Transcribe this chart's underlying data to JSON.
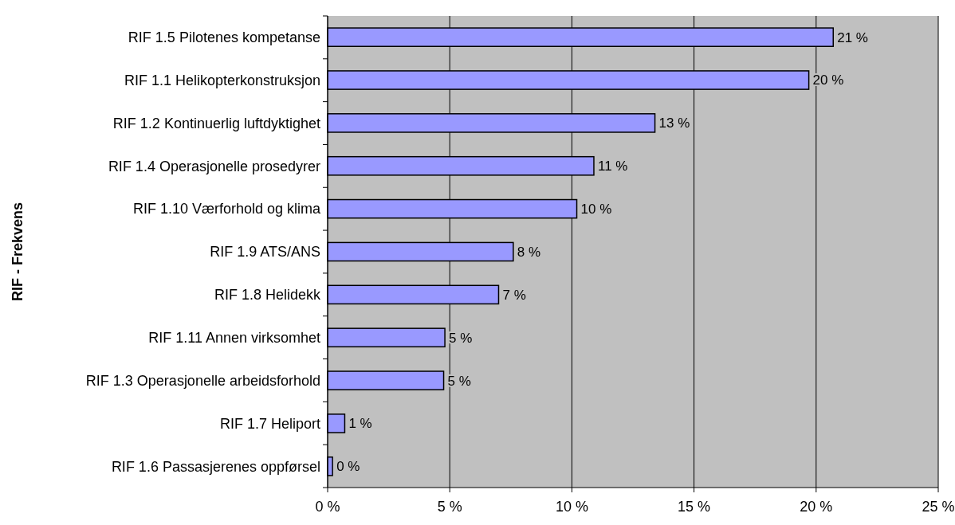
{
  "chart_data": {
    "type": "bar",
    "orientation": "horizontal",
    "ylabel": "RIF - Frekvens",
    "categories": [
      "RIF 1.5 Pilotenes kompetanse",
      "RIF 1.1 Helikopterkonstruksjon",
      "RIF 1.2 Kontinuerlig luftdyktighet",
      "RIF 1.4 Operasjonelle prosedyrer",
      "RIF 1.10 Værforhold og klima",
      "RIF 1.9 ATS/ANS",
      "RIF 1.8 Helidekk",
      "RIF 1.11 Annen virksomhet",
      "RIF 1.3 Operasjonelle arbeidsforhold",
      "RIF 1.7 Heliport",
      "RIF 1.6 Passasjerenes oppførsel"
    ],
    "values": [
      20.7,
      19.7,
      13.4,
      10.9,
      10.2,
      7.6,
      7.0,
      4.8,
      4.75,
      0.7,
      0.2
    ],
    "value_labels": [
      "21 %",
      "20 %",
      "13 %",
      "11 %",
      "10 %",
      "8 %",
      "7 %",
      "5 %",
      "5 %",
      "1 %",
      "0 %"
    ],
    "color": "#9999ff",
    "xlim": [
      0,
      25
    ],
    "xticks": [
      {
        "value": 0,
        "label": "0 %"
      },
      {
        "value": 5,
        "label": "5 %"
      },
      {
        "value": 10,
        "label": "10 %"
      },
      {
        "value": 15,
        "label": "15 %"
      },
      {
        "value": 20,
        "label": "20 %"
      },
      {
        "value": 25,
        "label": "25 %"
      }
    ],
    "grid": "x"
  }
}
